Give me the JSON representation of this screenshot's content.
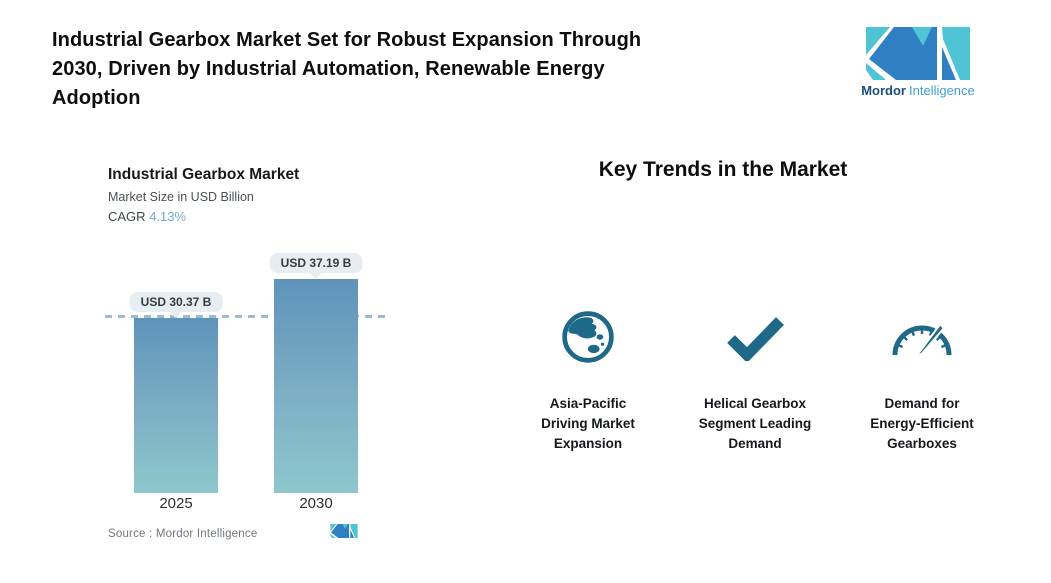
{
  "header": {
    "headline_lines": [
      "Industrial Gearbox Market Set for Robust Expansion Through",
      "2030, Driven by Industrial Automation, Renewable Energy",
      "Adoption"
    ],
    "logo": {
      "brand_bold": "Mordor",
      "brand_light": "Intelligence"
    }
  },
  "chart": {
    "title": "Industrial Gearbox Market",
    "subtitle": "Market Size in USD Billion",
    "cagr_label": "CAGR",
    "cagr_value": "4.13%",
    "source": "Source :  Mordor Intelligence"
  },
  "chart_data": {
    "type": "bar",
    "categories": [
      "2025",
      "2030"
    ],
    "values": [
      30.37,
      37.19
    ],
    "value_labels": [
      "USD 30.37 B",
      "USD 37.19 B"
    ],
    "title": "Industrial Gearbox Market",
    "subtitle": "Market Size in USD Billion",
    "cagr": "4.13%",
    "xlabel": "",
    "ylabel": "Market Size in USD Billion",
    "ylim": [
      0,
      42
    ],
    "grid": false,
    "legend": "none",
    "annotations": [
      "horizontal dashed reference line at 2025 value (30.37)"
    ]
  },
  "trends": {
    "heading": "Key Trends in the Market",
    "items": [
      {
        "icon": "globe-asia-icon",
        "lines": [
          "Asia-Pacific",
          "Driving Market",
          "Expansion"
        ]
      },
      {
        "icon": "checkmark-icon",
        "lines": [
          "Helical Gearbox",
          "Segment Leading",
          "Demand"
        ]
      },
      {
        "icon": "speedometer-icon",
        "lines": [
          "Demand for",
          "Energy-Efficient",
          "Gearboxes"
        ]
      }
    ]
  },
  "colors": {
    "accent_teal": "#4fc4d4",
    "accent_blue": "#2e80c2",
    "brand_dark_blue": "#1d4e79",
    "brand_light_blue": "#3f9fd8",
    "trend_icon_blue": "#1e6888",
    "bar_gradient_top": "#5e93bb",
    "bar_gradient_bottom": "#8ec7cc",
    "dashed_line": "#9cbad2",
    "value_pill_bg": "#e7edf0",
    "cagr_value_blue": "#73a9cc"
  }
}
